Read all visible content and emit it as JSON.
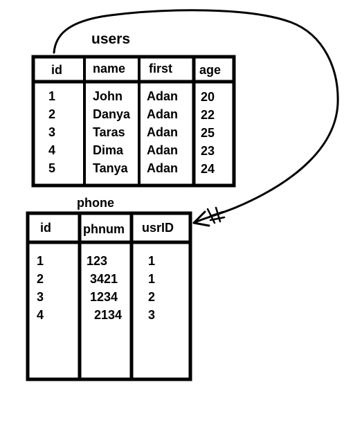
{
  "users": {
    "title": "users",
    "columns": [
      "id",
      "name",
      "first",
      "age"
    ],
    "rows": [
      [
        "1",
        "John",
        "Adan",
        "20"
      ],
      [
        "2",
        "Danya",
        "Adan",
        "22"
      ],
      [
        "3",
        "Taras",
        "Adan",
        "25"
      ],
      [
        "4",
        "Dima",
        "Adan",
        "23"
      ],
      [
        "5",
        "Tanya",
        "Adan",
        "24"
      ]
    ]
  },
  "phone": {
    "title": "phone",
    "columns": [
      "id",
      "phnum",
      "usrID"
    ],
    "rows": [
      [
        "1",
        "123",
        "1"
      ],
      [
        "2",
        "3421",
        "1"
      ],
      [
        "3",
        "1234",
        "2"
      ],
      [
        "4",
        "2134",
        "3"
      ]
    ]
  }
}
